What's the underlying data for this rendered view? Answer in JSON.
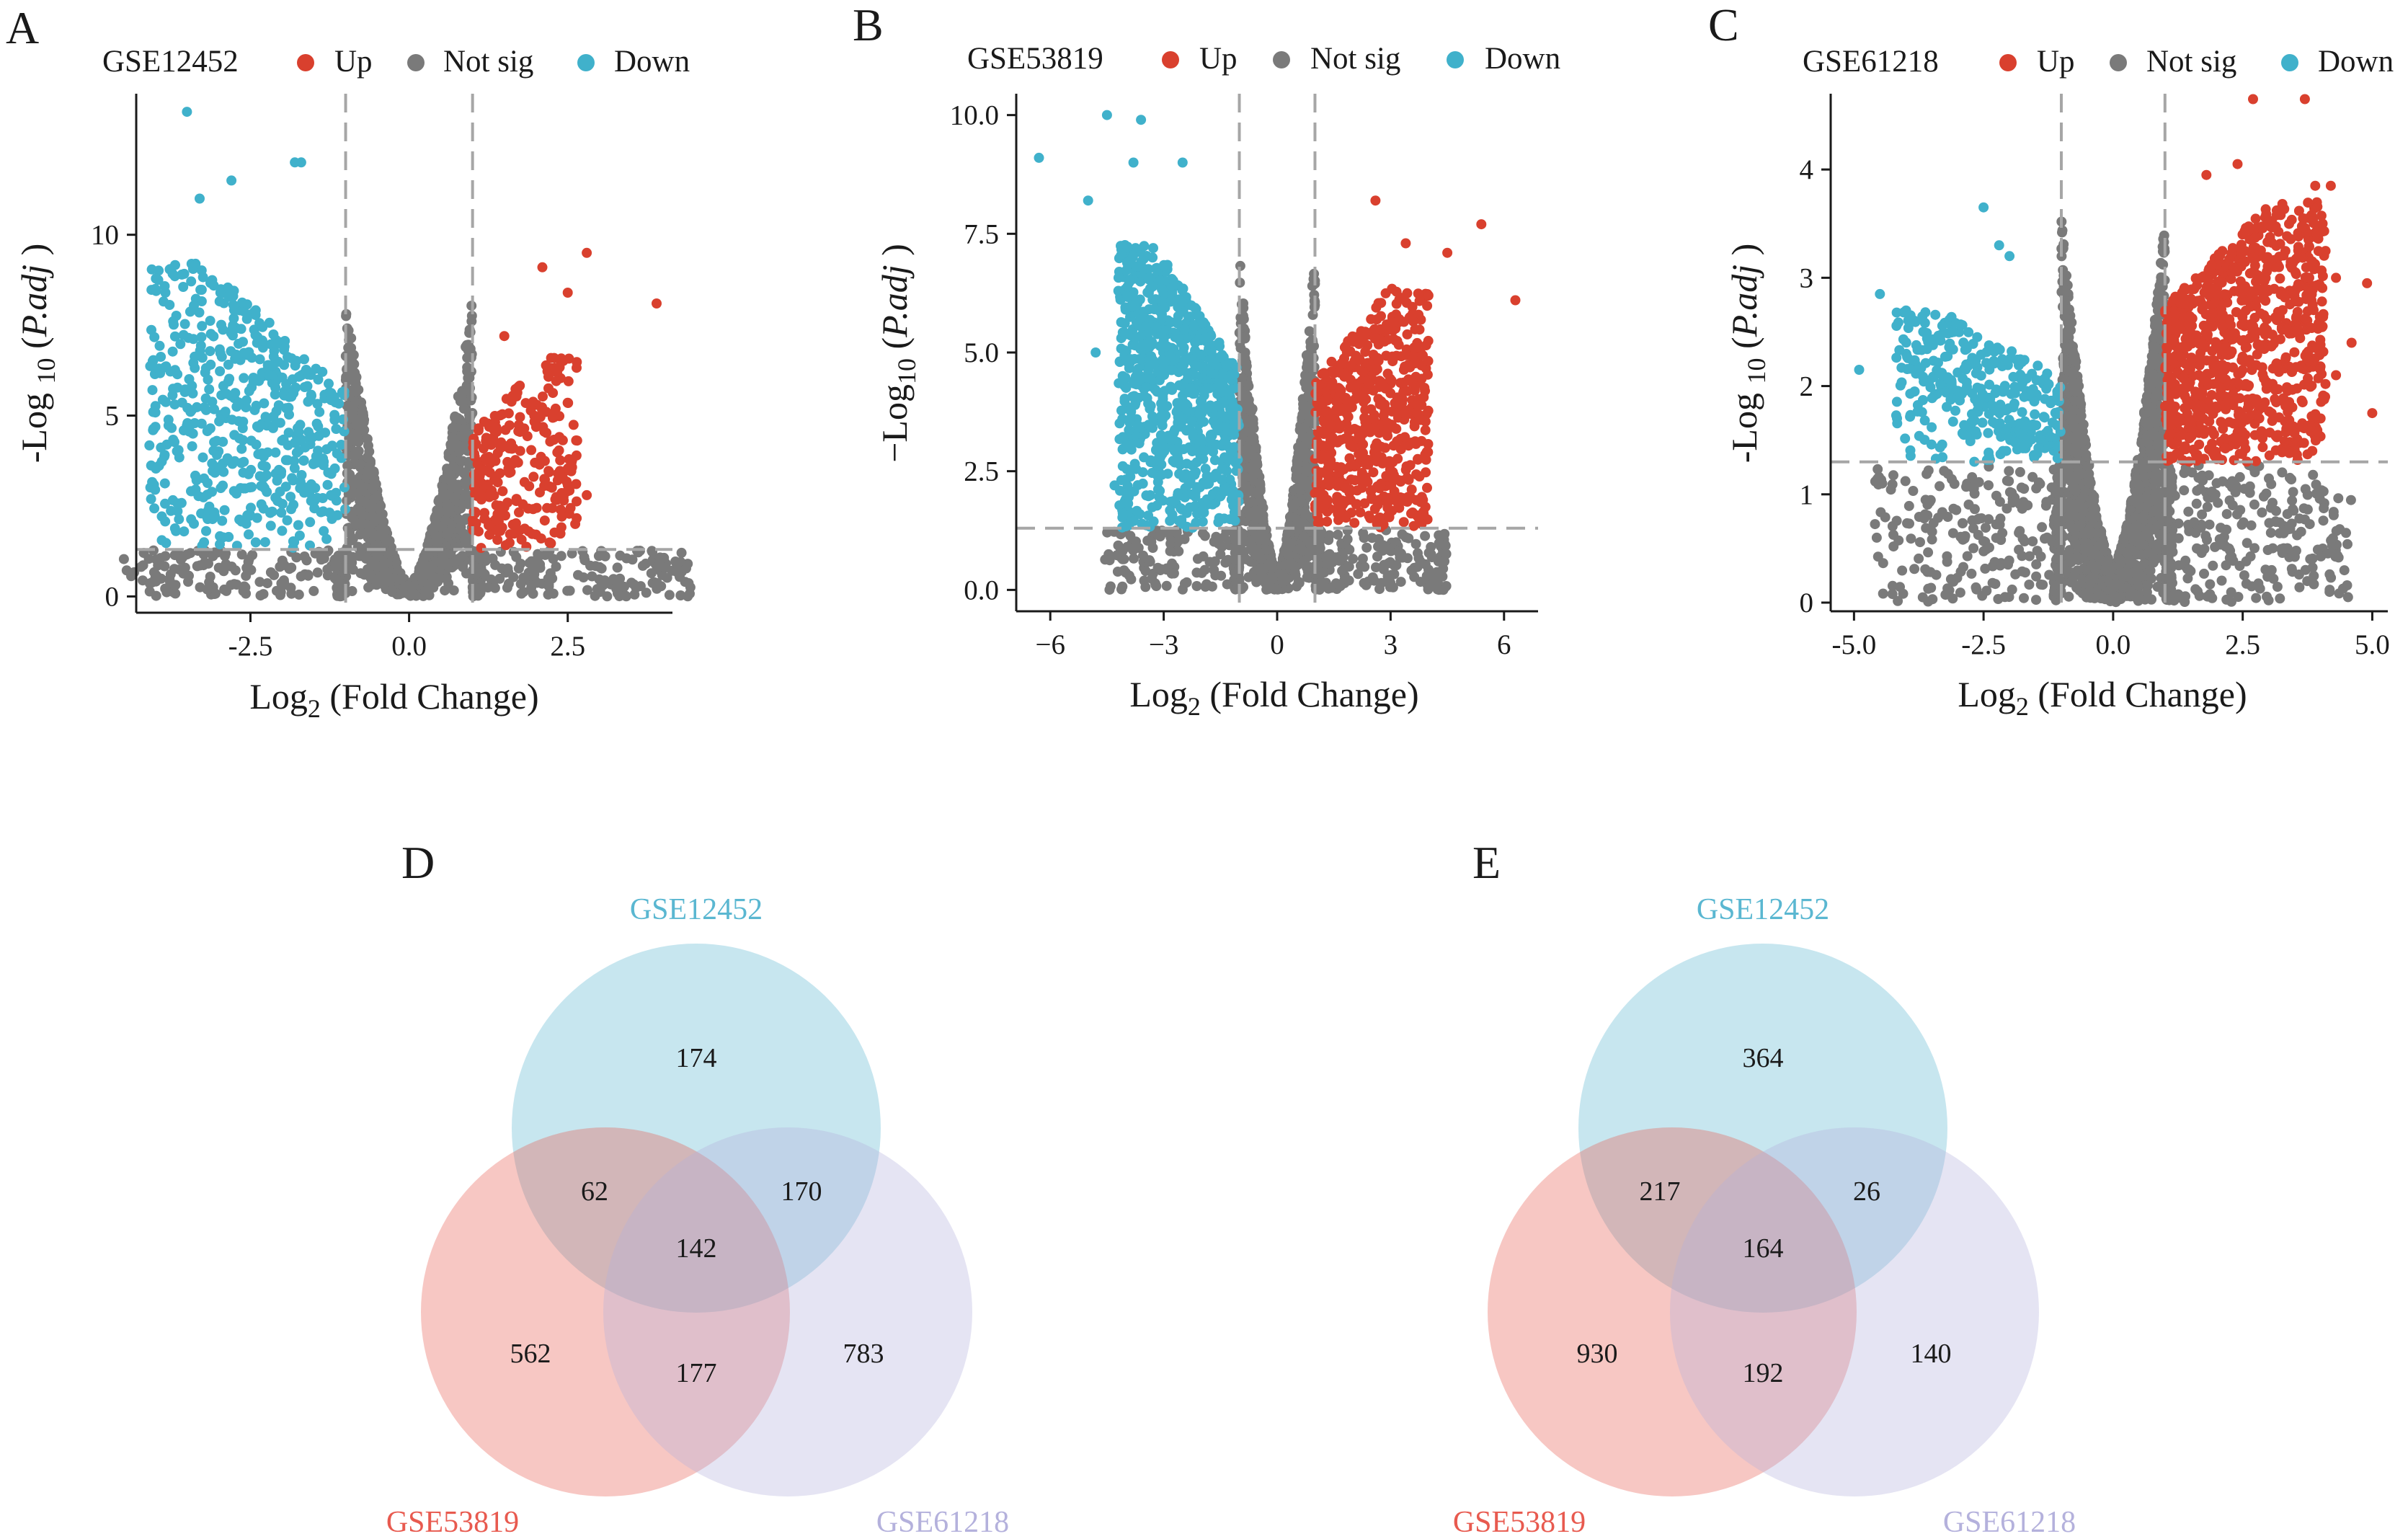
{
  "volcano_legend": {
    "up": "Up",
    "not_sig": "Not sig",
    "down": "Down"
  },
  "colors": {
    "up": "#d9402e",
    "not_sig": "#7a7a7a",
    "down": "#40b1cb",
    "threshold_line": "#a6a6a6",
    "venn_gse12452": "#5ab7d1",
    "venn_gse53819": "#e85a4f",
    "venn_gse61218": "#b4b1dc"
  },
  "chart_data": [
    {
      "panel": "A",
      "type": "scatter",
      "title": "GSE12452",
      "xlabel": "Log2 (Fold Change)",
      "ylabel": "-Log 10 (P.adj )",
      "xlim": [
        -4.3,
        4.15
      ],
      "ylim": [
        -0.45,
        13.9
      ],
      "xticks": [
        -2.5,
        0,
        2.5
      ],
      "xtick_labels": [
        "-2.5",
        "0.0",
        "2.5"
      ],
      "yticks": [
        0,
        5,
        10
      ],
      "ytick_labels": [
        "0",
        "5",
        "10"
      ],
      "fc_cutoff": 1,
      "p_cutoff": 1.3,
      "legend": "top",
      "grid": false,
      "group_counts": {
        "down": 540,
        "not_sig": 1500,
        "up": 260
      },
      "max_y": {
        "down": 9.2,
        "up": 6.6
      },
      "x_extent": {
        "down": -4.1,
        "up": 2.65
      },
      "extra_points": {
        "down": [
          [
            -3.5,
            13.4
          ],
          [
            -1.7,
            12.0
          ],
          [
            -1.8,
            12.0
          ],
          [
            -2.8,
            11.5
          ],
          [
            -3.3,
            11.0
          ],
          [
            -4.0,
            8.5
          ]
        ],
        "up": [
          [
            2.8,
            9.5
          ],
          [
            3.9,
            8.1
          ],
          [
            2.1,
            9.1
          ],
          [
            2.5,
            8.4
          ],
          [
            1.5,
            7.2
          ],
          [
            2.8,
            2.8
          ]
        ]
      }
    },
    {
      "panel": "B",
      "type": "scatter",
      "title": "GSE53819",
      "xlabel": "Log2 (Fold Change)",
      "ylabel": "−Log10 (P.adj )",
      "xlim": [
        -6.9,
        6.9
      ],
      "ylim": [
        -0.45,
        10.45
      ],
      "xticks": [
        -6,
        -3,
        0,
        3,
        6
      ],
      "xtick_labels": [
        "−6",
        "−3",
        "0",
        "3",
        "6"
      ],
      "yticks": [
        0,
        2.5,
        5,
        7.5,
        10
      ],
      "ytick_labels": [
        "0.0",
        "2.5",
        "5.0",
        "7.5",
        "10.0"
      ],
      "fc_cutoff": 1,
      "p_cutoff": 1.3,
      "legend": "top",
      "grid": false,
      "group_counts": {
        "down": 820,
        "not_sig": 1400,
        "up": 560
      },
      "max_y": {
        "down": 7.3,
        "up": 6.4
      },
      "x_extent": {
        "down": -4.2,
        "up": 4.0
      },
      "extra_points": {
        "down": [
          [
            -6.3,
            9.1
          ],
          [
            -4.5,
            10.0
          ],
          [
            -3.6,
            9.9
          ],
          [
            -3.8,
            9.0
          ],
          [
            -2.5,
            9.0
          ],
          [
            -5.0,
            8.2
          ],
          [
            -4.8,
            5.0
          ],
          [
            -4.3,
            2.2
          ]
        ],
        "up": [
          [
            5.4,
            7.7
          ],
          [
            4.5,
            7.1
          ],
          [
            6.3,
            6.1
          ],
          [
            2.6,
            8.2
          ],
          [
            3.4,
            7.3
          ],
          [
            4.0,
            6.2
          ],
          [
            3.7,
            3.9
          ]
        ]
      }
    },
    {
      "panel": "C",
      "type": "scatter",
      "title": "GSE61218",
      "xlabel": "Log2 (Fold Change)",
      "ylabel": "-Log 10 (P.adj )",
      "xlim": [
        -5.45,
        5.3
      ],
      "ylim": [
        -0.08,
        4.7
      ],
      "xticks": [
        -5,
        -2.5,
        0,
        2.5,
        5
      ],
      "xtick_labels": [
        "-5.0",
        "-2.5",
        "0.0",
        "2.5",
        "5.0"
      ],
      "yticks": [
        0,
        1,
        2,
        3,
        4
      ],
      "ytick_labels": [
        "0",
        "1",
        "2",
        "3",
        "4"
      ],
      "fc_cutoff": 1,
      "p_cutoff": 1.3,
      "legend": "top",
      "grid": false,
      "group_counts": {
        "down": 330,
        "not_sig": 2200,
        "up": 900
      },
      "max_y": {
        "down": 2.7,
        "up": 3.7
      },
      "x_extent": {
        "down": -4.2,
        "up": 4.1
      },
      "extra_points": {
        "down": [
          [
            -2.5,
            3.65
          ],
          [
            -4.9,
            2.15
          ],
          [
            -4.5,
            2.85
          ],
          [
            -2.0,
            3.2
          ],
          [
            -3.3,
            2.1
          ],
          [
            -2.2,
            3.3
          ]
        ],
        "up": [
          [
            2.7,
            4.65
          ],
          [
            3.7,
            4.65
          ],
          [
            2.4,
            4.05
          ],
          [
            1.8,
            3.95
          ],
          [
            3.9,
            3.85
          ],
          [
            4.2,
            3.85
          ],
          [
            4.9,
            2.95
          ],
          [
            5.0,
            1.75
          ],
          [
            4.6,
            2.4
          ],
          [
            4.3,
            3.0
          ],
          [
            4.3,
            2.1
          ]
        ]
      }
    },
    {
      "panel": "D",
      "type": "venn",
      "sets": [
        "GSE12452",
        "GSE53819",
        "GSE61218"
      ],
      "regions": {
        "only_12452": 174,
        "12452_53819": 62,
        "12452_61218": 170,
        "all": 142,
        "only_53819": 562,
        "53819_61218": 177,
        "only_61218": 783
      }
    },
    {
      "panel": "E",
      "type": "venn",
      "sets": [
        "GSE12452",
        "GSE53819",
        "GSE61218"
      ],
      "regions": {
        "only_12452": 364,
        "12452_53819": 217,
        "12452_61218": 26,
        "all": 164,
        "only_53819": 930,
        "53819_61218": 192,
        "only_61218": 140
      }
    }
  ]
}
